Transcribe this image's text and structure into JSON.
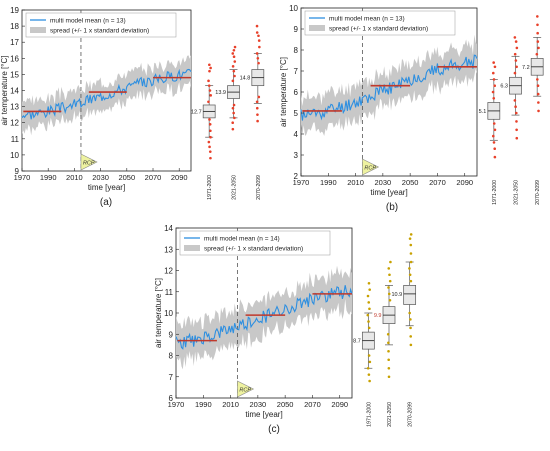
{
  "colors": {
    "mean_line": "#2e8fe0",
    "spread": "#c8c8c8",
    "period_mean": "#c0392b",
    "outlier_red": "#e8402a",
    "outlier_gold": "#c8a100",
    "box_fill": "#e8e8e8",
    "rcp_fill": "#eef2a0",
    "axis": "#222222"
  },
  "icons": {
    "rcp_marker": "triangle-flag-icon"
  },
  "chart_data": [
    {
      "type": "line",
      "panel_label": "(a)",
      "ylabel": "air temperature [°C]",
      "xlabel": "time [year]",
      "ylim": [
        9,
        19
      ],
      "yticks": [
        9,
        10,
        11,
        12,
        13,
        14,
        15,
        16,
        17,
        18,
        19
      ],
      "xlim": [
        1970,
        2099
      ],
      "xticks": [
        1970,
        1990,
        2010,
        2030,
        2050,
        2070,
        2090
      ],
      "legend": {
        "placement": "top-left",
        "mean_label": "multi model mean (n = 13)",
        "spread_label": "spread (+/- 1 x standard deviation)"
      },
      "rcp_label": "RCP",
      "rcp_year": 2015,
      "mean_series": {
        "start": 12.5,
        "end": 15.0,
        "spread": 0.8,
        "noise": 0.35,
        "seed": 3
      },
      "period_means": [
        {
          "x0": 1971,
          "x1": 2000,
          "value": 12.7
        },
        {
          "x0": 2021,
          "x1": 2050,
          "value": 13.9
        },
        {
          "x0": 2070,
          "x1": 2099,
          "value": 14.8
        }
      ],
      "box_outlier_color": "outlier_red",
      "boxes": [
        {
          "label": "1971-2000",
          "q1": 12.3,
          "median": 12.7,
          "q3": 13.1,
          "min": 11.1,
          "max": 14.3,
          "mean": 12.7,
          "mean_label": "12.7",
          "outliers": [
            9.8,
            10.2,
            10.5,
            10.8,
            11.1,
            11.5,
            11.9,
            12.2,
            13.3,
            13.7,
            14.0,
            14.3,
            14.6,
            15.2,
            15.4,
            15.6
          ]
        },
        {
          "label": "2021-2050",
          "q1": 13.5,
          "median": 13.9,
          "q3": 14.3,
          "min": 12.3,
          "max": 15.3,
          "mean": 13.9,
          "mean_label": "13.9",
          "outliers": [
            11.6,
            12.0,
            12.3,
            12.6,
            12.9,
            13.1,
            14.6,
            14.9,
            15.2,
            15.5,
            15.8,
            16.1,
            16.3,
            16.5,
            16.7
          ]
        },
        {
          "label": "2070-2099",
          "q1": 14.3,
          "median": 14.8,
          "q3": 15.3,
          "min": 13.2,
          "max": 16.3,
          "mean": 14.8,
          "mean_label": "14.8",
          "outliers": [
            12.1,
            12.5,
            12.9,
            13.3,
            13.6,
            15.7,
            16.0,
            16.3,
            16.7,
            17.1,
            17.4,
            17.6,
            18.0
          ]
        }
      ]
    },
    {
      "type": "line",
      "panel_label": "(b)",
      "ylabel": "air temperature [°C]",
      "xlabel": "time [year]",
      "ylim": [
        2,
        10
      ],
      "yticks": [
        2,
        3,
        4,
        5,
        6,
        7,
        8,
        9,
        10
      ],
      "xlim": [
        1970,
        2099
      ],
      "xticks": [
        1970,
        1990,
        2010,
        2030,
        2050,
        2070,
        2090
      ],
      "legend": {
        "placement": "top-left",
        "mean_label": "multi model mean (n = 13)",
        "spread_label": "spread (+/- 1 x standard deviation)"
      },
      "rcp_label": "RCP",
      "rcp_year": 2015,
      "mean_series": {
        "start": 4.9,
        "end": 7.4,
        "spread": 0.75,
        "noise": 0.33,
        "seed": 11
      },
      "period_means": [
        {
          "x0": 1971,
          "x1": 2000,
          "value": 5.1
        },
        {
          "x0": 2021,
          "x1": 2050,
          "value": 6.3
        },
        {
          "x0": 2070,
          "x1": 2099,
          "value": 7.2
        }
      ],
      "box_outlier_color": "outlier_red",
      "boxes": [
        {
          "label": "1971-2000",
          "q1": 4.7,
          "median": 5.1,
          "q3": 5.5,
          "min": 3.7,
          "max": 6.6,
          "mean": 5.1,
          "mean_label": "5.1",
          "outliers": [
            2.9,
            3.3,
            3.6,
            3.9,
            4.2,
            4.5,
            5.7,
            6.0,
            6.3,
            6.6,
            6.9,
            7.2,
            7.4
          ]
        },
        {
          "label": "2021-2050",
          "q1": 5.9,
          "median": 6.3,
          "q3": 6.7,
          "min": 4.9,
          "max": 7.7,
          "mean": 6.3,
          "mean_label": "6.3",
          "outliers": [
            3.8,
            4.2,
            4.6,
            5.0,
            5.3,
            5.6,
            6.9,
            7.2,
            7.5,
            7.8,
            8.1,
            8.4,
            8.6
          ]
        },
        {
          "label": "2070-2099",
          "q1": 6.8,
          "median": 7.2,
          "q3": 7.6,
          "min": 5.8,
          "max": 8.6,
          "mean": 7.2,
          "mean_label": "7.2",
          "outliers": [
            5.1,
            5.5,
            5.9,
            6.3,
            6.6,
            7.8,
            8.1,
            8.4,
            8.8,
            9.2,
            9.6
          ]
        }
      ]
    },
    {
      "type": "line",
      "panel_label": "(c)",
      "ylabel": "air temperature [°C]",
      "xlabel": "time [year]",
      "ylim": [
        6,
        14
      ],
      "yticks": [
        6,
        7,
        8,
        9,
        10,
        11,
        12,
        13,
        14
      ],
      "xlim": [
        1970,
        2099
      ],
      "xticks": [
        1970,
        1990,
        2010,
        2030,
        2050,
        2070,
        2090
      ],
      "legend": {
        "placement": "top-left",
        "mean_label": "multi model mean (n = 14)",
        "spread_label": "spread (+/- 1 x standard deviation)"
      },
      "rcp_label": "RCP",
      "rcp_year": 2015,
      "mean_series": {
        "start": 8.6,
        "end": 11.0,
        "spread": 0.8,
        "noise": 0.33,
        "seed": 23
      },
      "period_means": [
        {
          "x0": 1971,
          "x1": 2000,
          "value": 8.7
        },
        {
          "x0": 2021,
          "x1": 2050,
          "value": 9.9
        },
        {
          "x0": 2070,
          "x1": 2099,
          "value": 10.9
        }
      ],
      "box_outlier_color": "outlier_gold",
      "boxes": [
        {
          "label": "1971-2000",
          "q1": 8.3,
          "median": 8.7,
          "q3": 9.1,
          "min": 7.4,
          "max": 10.0,
          "mean": 8.7,
          "mean_label": "8.7",
          "outliers": [
            6.8,
            7.1,
            7.4,
            7.7,
            8.0,
            9.3,
            9.6,
            9.9,
            10.2,
            10.5,
            10.8,
            11.1,
            11.4
          ]
        },
        {
          "label": "2021-2050",
          "q1": 9.5,
          "median": 9.9,
          "q3": 10.3,
          "min": 8.5,
          "max": 11.3,
          "mean": 9.9,
          "mean_label": "9.9",
          "outliers": [
            7.0,
            7.4,
            7.8,
            8.2,
            8.6,
            9.0,
            10.6,
            10.9,
            11.2,
            11.5,
            11.8,
            12.1,
            12.4
          ]
        },
        {
          "label": "2070-2099",
          "q1": 10.4,
          "median": 10.9,
          "q3": 11.3,
          "min": 9.4,
          "max": 12.4,
          "mean": 10.9,
          "mean_label": "10.9",
          "outliers": [
            8.5,
            8.9,
            9.3,
            9.7,
            10.0,
            11.5,
            11.8,
            12.1,
            12.4,
            12.8,
            13.2,
            13.5,
            13.7
          ]
        }
      ]
    }
  ]
}
